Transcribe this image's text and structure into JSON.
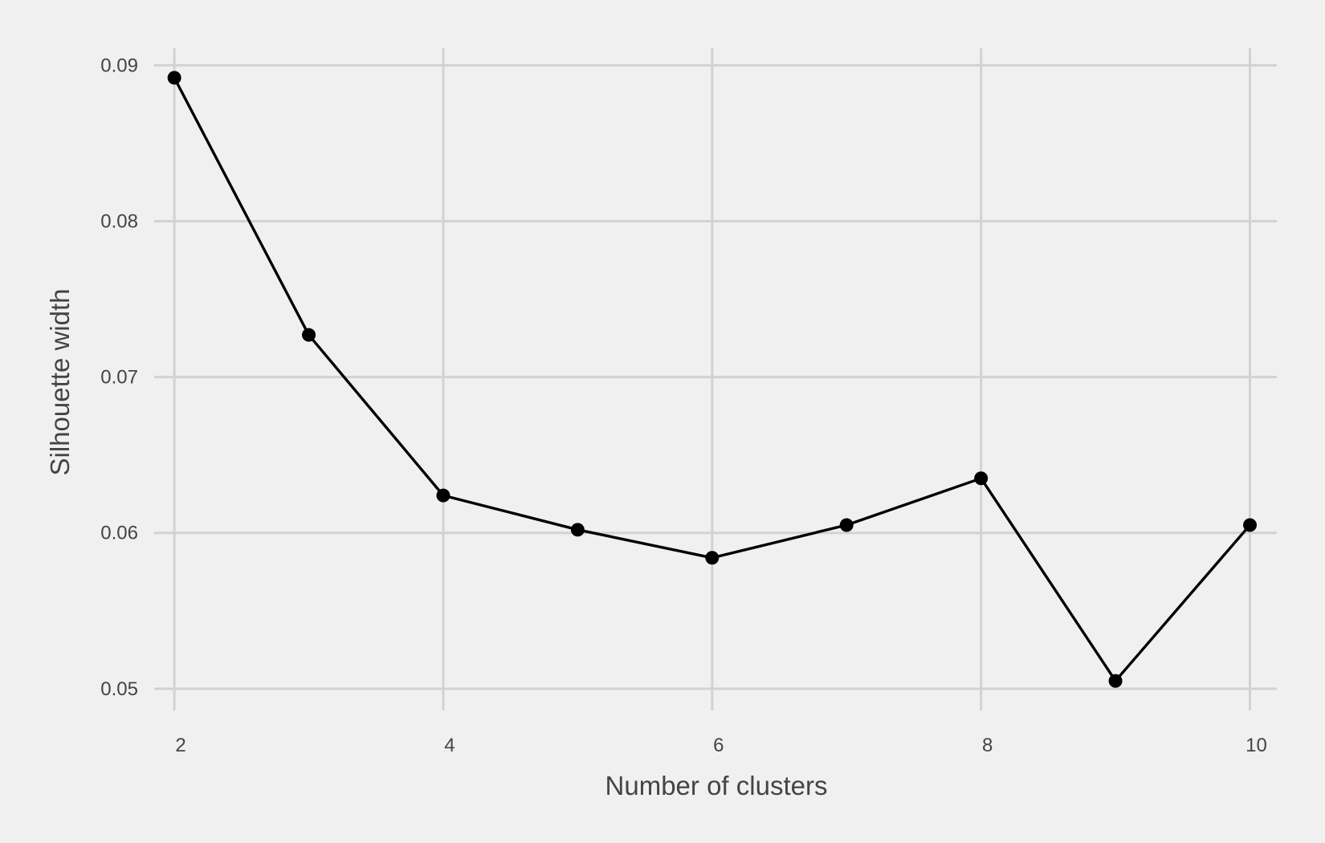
{
  "chart_data": {
    "type": "line",
    "title": "",
    "xlabel": "Number of clusters",
    "ylabel": "Silhouette width",
    "x": [
      2,
      3,
      4,
      5,
      6,
      7,
      8,
      9,
      10
    ],
    "series": [
      {
        "values": [
          0.0892,
          0.0727,
          0.0624,
          0.0602,
          0.0584,
          0.0605,
          0.0635,
          0.0505,
          0.0605
        ]
      }
    ],
    "xlim": [
      1.85,
      10.2
    ],
    "ylim": [
      0.0486,
      0.0911
    ],
    "x_ticks": [
      2,
      4,
      6,
      8,
      10
    ],
    "x_tick_labels": [
      "2",
      "4",
      "6",
      "8",
      "10"
    ],
    "y_ticks": [
      0.05,
      0.06,
      0.07,
      0.08,
      0.09
    ],
    "y_tick_labels": [
      "0.05",
      "0.06",
      "0.07",
      "0.08",
      "0.09"
    ],
    "grid": true,
    "legend": "none",
    "colors": {
      "background": "#f0f0f0",
      "grid": "#d2d2d2",
      "line": "#000000",
      "text": "#444444"
    }
  }
}
